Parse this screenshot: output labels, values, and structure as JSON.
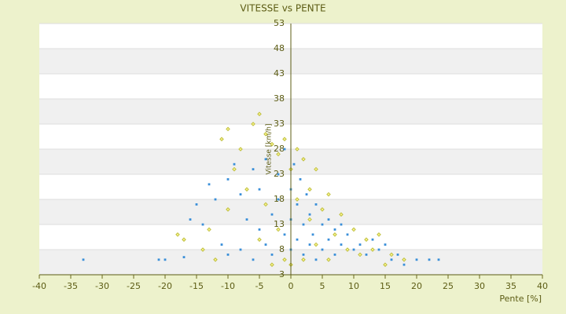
{
  "chart_data": {
    "type": "scatter",
    "title": "VITESSE vs PENTE",
    "x_label": "Pente [%]",
    "y_label": "Vitesse [km/h]",
    "xlim": [
      -40,
      40
    ],
    "xticks": [
      -40,
      -35,
      -30,
      -25,
      -20,
      -15,
      -10,
      -5,
      0,
      5,
      10,
      15,
      20,
      25,
      30,
      35,
      40
    ],
    "ylim": [
      3,
      53
    ],
    "yticks": [
      3,
      8,
      13,
      18,
      23,
      28,
      33,
      38,
      43,
      48,
      53
    ],
    "grid": true,
    "series": [
      {
        "color": "#b8b82e",
        "x": [
          -18,
          -17,
          -14,
          -13,
          -12,
          -11,
          -10,
          -10,
          -9,
          -8,
          -7,
          -6,
          -5,
          -5,
          -4,
          -4,
          -3,
          -3,
          -2,
          -2,
          -1,
          -1,
          0,
          0,
          1,
          1,
          2,
          2,
          3,
          3,
          4,
          4,
          5,
          6,
          6,
          7,
          8,
          9,
          10,
          11,
          12,
          13,
          14,
          15,
          16,
          18
        ],
        "values": [
          11,
          10,
          8,
          12,
          6,
          30,
          32,
          16,
          24,
          28,
          20,
          33,
          35,
          10,
          31,
          17,
          29,
          5,
          27,
          12,
          30,
          6,
          24,
          5,
          28,
          18,
          26,
          6,
          20,
          14,
          24,
          9,
          16,
          19,
          6,
          11,
          15,
          8,
          12,
          7,
          10,
          8,
          11,
          5,
          7,
          6
        ]
      },
      {
        "color": "#3a8fd9",
        "x": [
          -33,
          -21,
          -20,
          -17,
          -16,
          -15,
          -14,
          -13,
          -12,
          -11,
          -10,
          -10,
          -9,
          -8,
          -8,
          -7,
          -6,
          -6,
          -5,
          -5,
          -4,
          -4,
          -3,
          -3,
          -2,
          -2,
          -1,
          -1,
          0,
          0,
          0,
          0.5,
          1,
          1,
          1.5,
          2,
          2,
          2.5,
          3,
          3,
          3.5,
          4,
          4,
          5,
          5,
          6,
          6,
          7,
          7,
          8,
          8,
          9,
          10,
          11,
          12,
          13,
          14,
          15,
          16,
          17,
          18,
          20,
          22,
          23.5
        ],
        "values": [
          6,
          6,
          6,
          6.5,
          14,
          17,
          13,
          21,
          18,
          9,
          7,
          22,
          25,
          19,
          8,
          14,
          6,
          24,
          12,
          20,
          9,
          26,
          15,
          7,
          18,
          23,
          11,
          28,
          20,
          14,
          8,
          25,
          17,
          10,
          22,
          13,
          7,
          19,
          15,
          9,
          11,
          17,
          6,
          13,
          8,
          10,
          14,
          12,
          7,
          9,
          13,
          11,
          8,
          9,
          7,
          10,
          8,
          9,
          6,
          7,
          5,
          6,
          6,
          6
        ]
      }
    ]
  }
}
